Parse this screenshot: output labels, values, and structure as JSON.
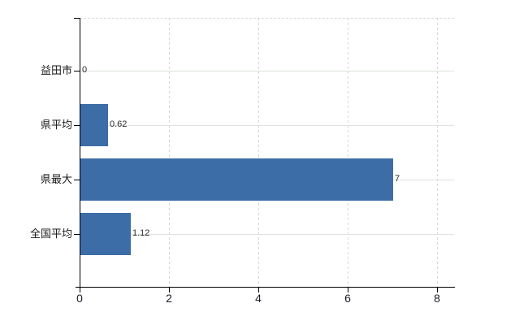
{
  "chart_data": {
    "type": "bar",
    "orientation": "horizontal",
    "title": "",
    "xlabel": "",
    "ylabel": "",
    "categories": [
      "益田市",
      "県平均",
      "県最大",
      "全国平均"
    ],
    "values": [
      0,
      0.62,
      7,
      1.12
    ],
    "value_labels": [
      "0",
      "0.62",
      "7",
      "1.12"
    ],
    "x_ticks": [
      0,
      2,
      4,
      6,
      8
    ],
    "x_tick_labels": [
      "0",
      "2",
      "4",
      "6",
      "8"
    ],
    "xlim": [
      0,
      8.4
    ],
    "grid": "on",
    "legend": "none",
    "colors": {
      "bar": "#3d6da6",
      "axis": "#000000",
      "grid_horizontal": "#dce4dc",
      "grid_vertical": "#d6d6d6",
      "grid_top_border": "#d9d9d9",
      "category_text": "#1a1a1a",
      "tick_text": "#1d1d2b",
      "value_text": "#2a2a2a",
      "background": "#ffffff"
    }
  }
}
